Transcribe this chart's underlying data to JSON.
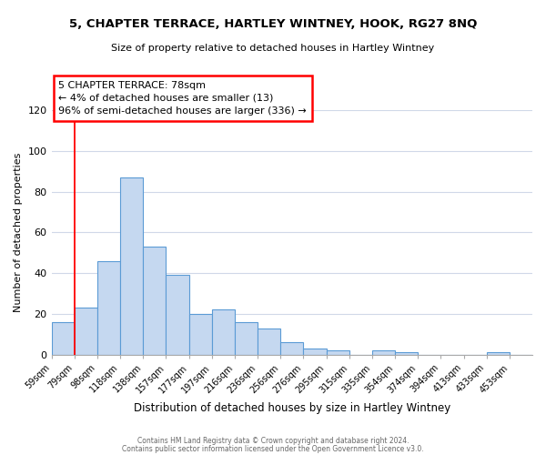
{
  "title": "5, CHAPTER TERRACE, HARTLEY WINTNEY, HOOK, RG27 8NQ",
  "subtitle": "Size of property relative to detached houses in Hartley Wintney",
  "xlabel": "Distribution of detached houses by size in Hartley Wintney",
  "ylabel": "Number of detached properties",
  "bin_labels": [
    "59sqm",
    "79sqm",
    "98sqm",
    "118sqm",
    "138sqm",
    "157sqm",
    "177sqm",
    "197sqm",
    "216sqm",
    "236sqm",
    "256sqm",
    "276sqm",
    "295sqm",
    "315sqm",
    "335sqm",
    "354sqm",
    "374sqm",
    "394sqm",
    "413sqm",
    "433sqm",
    "453sqm"
  ],
  "bar_values": [
    16,
    23,
    46,
    87,
    53,
    39,
    20,
    22,
    16,
    13,
    6,
    3,
    2,
    0,
    2,
    1,
    0,
    0,
    0,
    1,
    0
  ],
  "bar_color": "#c5d8f0",
  "bar_edge_color": "#5b9bd5",
  "ylim": [
    0,
    120
  ],
  "yticks": [
    0,
    20,
    40,
    60,
    80,
    100,
    120
  ],
  "red_line_x": 1,
  "annotation_title": "5 CHAPTER TERRACE: 78sqm",
  "annotation_line1": "← 4% of detached houses are smaller (13)",
  "annotation_line2": "96% of semi-detached houses are larger (336) →",
  "footer_line1": "Contains HM Land Registry data © Crown copyright and database right 2024.",
  "footer_line2": "Contains public sector information licensed under the Open Government Licence v3.0.",
  "background_color": "#ffffff",
  "grid_color": "#d0d8e8"
}
